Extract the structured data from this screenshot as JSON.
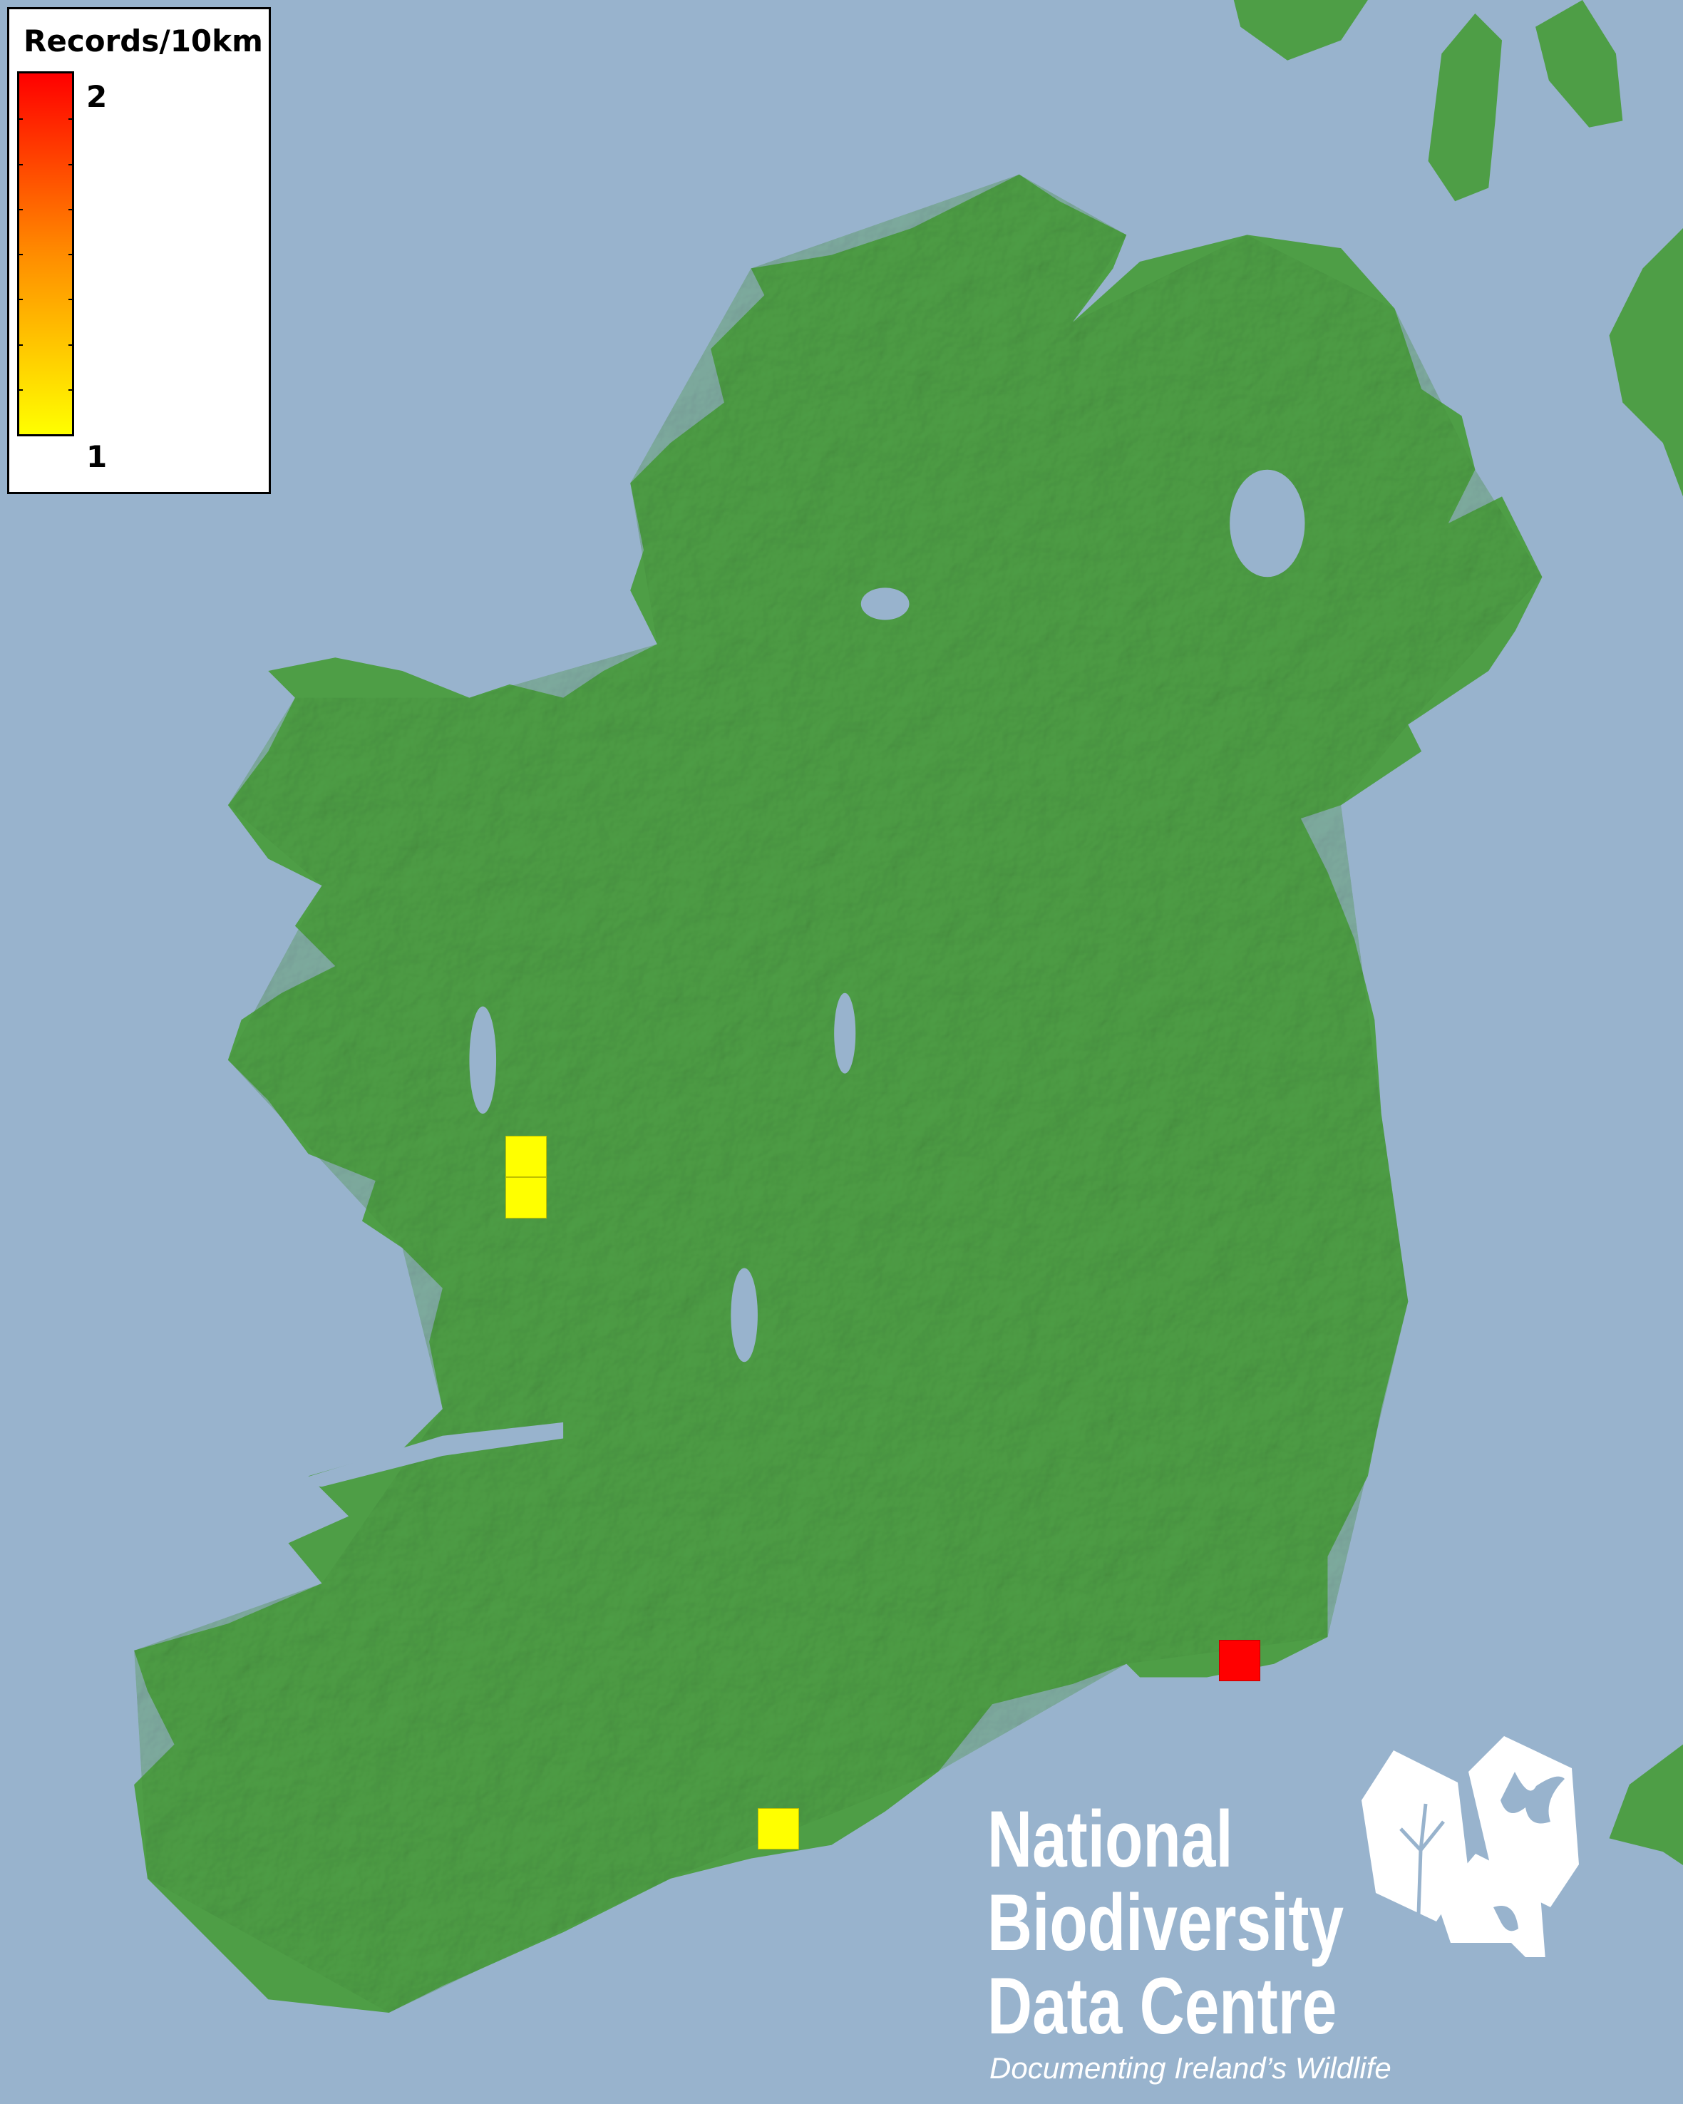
{
  "legend": {
    "title": "Records/10km",
    "max_label": "2",
    "min_label": "1",
    "color_max": "#ff0000",
    "color_min": "#ffff00"
  },
  "grid_squares": [
    {
      "value": 1,
      "color": "#ffff00"
    },
    {
      "value": 1,
      "color": "#ffff00"
    },
    {
      "value": 2,
      "color": "#ff0000"
    },
    {
      "value": 1,
      "color": "#ffff00"
    }
  ],
  "colors": {
    "sea": "#98b3cd",
    "land": "#4e9e46"
  },
  "logo": {
    "line1": "National",
    "line2": "Biodiversity",
    "line3": "Data Centre",
    "tagline": "Documenting Ireland’s Wildlife"
  }
}
